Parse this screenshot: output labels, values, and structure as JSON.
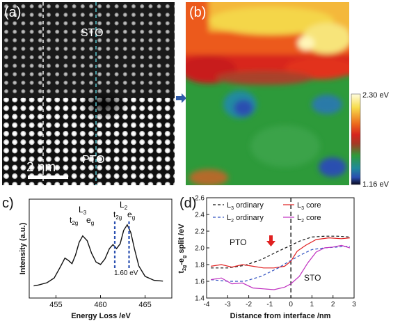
{
  "panel_a": {
    "label": "(a)",
    "region_top": "STO",
    "region_bottom": "PTO",
    "scale_bar": "2 nm"
  },
  "panel_b": {
    "label": "(b)",
    "colorbar_max": "2.30 eV",
    "colorbar_min": "1.16 eV",
    "colors": {
      "red": "#e8321c",
      "orange": "#f07a1a",
      "yellow": "#f4de50",
      "green": "#2d9a3a",
      "blue": "#2a4fb0",
      "arrow": "#2f5aa8"
    }
  },
  "chart_data": [
    {
      "panel": "(c)",
      "type": "line",
      "xlabel": "Energy Loss /eV",
      "ylabel": "Intensity (a.u.)",
      "xlim": [
        452,
        468
      ],
      "xticks": [
        455,
        460,
        465
      ],
      "annotations": {
        "edge_L3": "L",
        "edge_L3_sub": "3",
        "edge_L2": "L",
        "edge_L2_sub": "2",
        "t2g": "t",
        "t2g_sub": "2g",
        "eg": "e",
        "eg_sub": "g",
        "split": "1.60 eV"
      },
      "split_markers_x": [
        461.6,
        463.2
      ],
      "x": [
        452.5,
        453,
        454,
        454.8,
        455.5,
        456.0,
        456.4,
        456.8,
        457.2,
        457.6,
        458.0,
        458.5,
        459.0,
        459.5,
        460.0,
        460.5,
        461.0,
        461.4,
        461.8,
        462.2,
        462.6,
        463.0,
        463.4,
        463.8,
        464.3,
        465,
        466,
        467
      ],
      "y": [
        0.03,
        0.04,
        0.07,
        0.13,
        0.27,
        0.38,
        0.35,
        0.31,
        0.42,
        0.58,
        0.66,
        0.6,
        0.44,
        0.33,
        0.3,
        0.37,
        0.5,
        0.55,
        0.5,
        0.56,
        0.73,
        0.8,
        0.7,
        0.5,
        0.28,
        0.15,
        0.1,
        0.09
      ]
    },
    {
      "panel": "(d)",
      "type": "line",
      "xlabel": "Distance from interface /nm",
      "ylabel": "t2g-eg split /eV",
      "xlim": [
        -4,
        3
      ],
      "ylim": [
        1.4,
        2.6
      ],
      "xticks": [
        -4,
        -3,
        -2,
        -1,
        0,
        1,
        2,
        3
      ],
      "yticks": [
        1.4,
        1.6,
        1.8,
        2.0,
        2.2,
        2.4,
        2.6
      ],
      "region_left": "PTO",
      "region_right": "STO",
      "legend": [
        {
          "name": "L3 ordinary",
          "text": "L",
          "sub": "3",
          "tail": " ordinary",
          "color": "#111111",
          "dash": true
        },
        {
          "name": "L3 core",
          "text": "L",
          "sub": "3",
          "tail": " core",
          "color": "#e02020",
          "dash": false
        },
        {
          "name": "L2 ordinary",
          "text": "L",
          "sub": "2",
          "tail": " ordinary",
          "color": "#3050c0",
          "dash": true
        },
        {
          "name": "L2 core",
          "text": "L",
          "sub": "2",
          "tail": " core",
          "color": "#c030c0",
          "dash": false
        }
      ],
      "series": [
        {
          "name": "L3 ordinary",
          "color": "#111111",
          "dash": true,
          "x": [
            -3.8,
            -3.0,
            -2.2,
            -1.4,
            -0.6,
            0.0,
            0.4,
            1.0,
            1.6,
            2.2,
            2.8
          ],
          "y": [
            1.76,
            1.76,
            1.79,
            1.86,
            1.96,
            2.03,
            2.08,
            2.13,
            2.14,
            2.14,
            2.13
          ]
        },
        {
          "name": "L3 core",
          "color": "#e02020",
          "dash": false,
          "x": [
            -3.8,
            -3.3,
            -2.8,
            -2.3,
            -1.8,
            -1.3,
            -0.8,
            -0.3,
            0.0,
            0.3,
            0.7,
            1.2,
            1.8,
            2.4,
            2.8
          ],
          "y": [
            1.78,
            1.8,
            1.77,
            1.8,
            1.78,
            1.76,
            1.76,
            1.78,
            1.84,
            1.96,
            2.03,
            2.1,
            2.12,
            2.11,
            2.12
          ]
        },
        {
          "name": "L2 ordinary",
          "color": "#3050c0",
          "dash": true,
          "x": [
            -3.8,
            -3.0,
            -2.2,
            -1.4,
            -0.6,
            0.0,
            0.5,
            1.0,
            1.6,
            2.2,
            2.8
          ],
          "y": [
            1.62,
            1.6,
            1.6,
            1.66,
            1.76,
            1.85,
            1.92,
            1.98,
            2.0,
            2.01,
            2.02
          ]
        },
        {
          "name": "L2 core",
          "color": "#c030c0",
          "dash": false,
          "x": [
            -3.8,
            -3.3,
            -2.8,
            -2.3,
            -1.8,
            -1.3,
            -0.8,
            -0.3,
            0.0,
            0.4,
            0.8,
            1.2,
            1.6,
            2.0,
            2.4,
            2.8
          ],
          "y": [
            1.62,
            1.64,
            1.57,
            1.58,
            1.52,
            1.51,
            1.5,
            1.53,
            1.57,
            1.66,
            1.82,
            1.95,
            2.0,
            2.01,
            2.03,
            2.0
          ]
        }
      ]
    }
  ]
}
